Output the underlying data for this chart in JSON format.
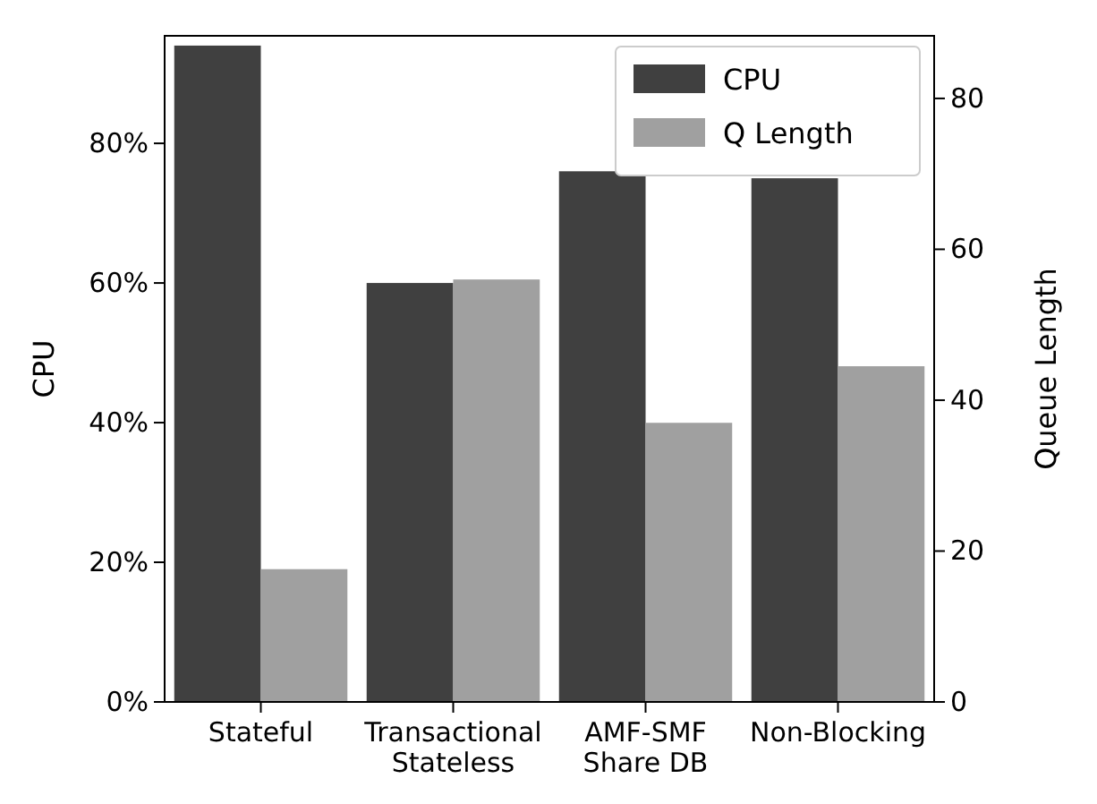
{
  "chart_data": {
    "type": "bar",
    "categories": [
      "Stateful",
      "Transactional\nStateless",
      "AMF-SMF\nShare DB",
      "Non-Blocking"
    ],
    "ylabel": "CPU",
    "y2label": "Queue Length",
    "series": [
      {
        "name": "CPU",
        "color": "#404040",
        "values": [
          94,
          60,
          76,
          75
        ]
      },
      {
        "name": "Q Length",
        "color": "#a0a0a0",
        "axis": "y2",
        "values": [
          17.6,
          56,
          37,
          44.5
        ]
      }
    ],
    "ylim": [
      0,
      95.4
    ],
    "yticks": [
      {
        "value": 0,
        "label": "0%"
      },
      {
        "value": 20,
        "label": "20%"
      },
      {
        "value": 40,
        "label": "40%"
      },
      {
        "value": 60,
        "label": "60%"
      },
      {
        "value": 80,
        "label": "80%"
      }
    ],
    "y2lim": [
      0,
      88.3
    ],
    "y2ticks": [
      0,
      20,
      40,
      60,
      80
    ],
    "legend": "top right"
  }
}
